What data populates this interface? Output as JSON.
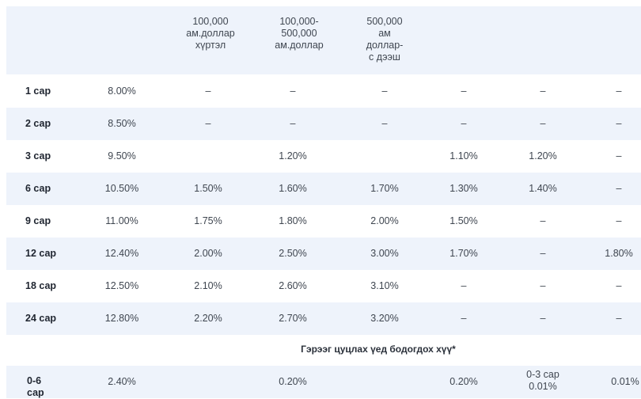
{
  "header": {
    "col_100k": "100,000\nам.доллар\nхүртэл",
    "col_100k_500k": "100,000-\n500,000\nам.доллар",
    "col_500k_plus": "500,000\nам\nдоллар-\nс дээш"
  },
  "rows": [
    {
      "term": "1 сар",
      "values": [
        "8.00%",
        "–",
        "–",
        "–",
        "–",
        "–",
        "–"
      ]
    },
    {
      "term": "2 сар",
      "values": [
        "8.50%",
        "–",
        "–",
        "–",
        "–",
        "–",
        "–"
      ]
    },
    {
      "term": "3 сар",
      "values": [
        "9.50%",
        "",
        "1.20%",
        "",
        "1.10%",
        "1.20%",
        "–"
      ]
    },
    {
      "term": "6 сар",
      "values": [
        "10.50%",
        "1.50%",
        "1.60%",
        "1.70%",
        "1.30%",
        "1.40%",
        "–"
      ]
    },
    {
      "term": "9 сар",
      "values": [
        "11.00%",
        "1.75%",
        "1.80%",
        "2.00%",
        "1.50%",
        "–",
        "–"
      ]
    },
    {
      "term": "12 сар",
      "values": [
        "12.40%",
        "2.00%",
        "2.50%",
        "3.00%",
        "1.70%",
        "–",
        "1.80%"
      ]
    },
    {
      "term": "18 сар",
      "values": [
        "12.50%",
        "2.10%",
        "2.60%",
        "3.10%",
        "–",
        "–",
        "–"
      ]
    },
    {
      "term": "24 сар",
      "values": [
        "12.80%",
        "2.20%",
        "2.70%",
        "3.20%",
        "–",
        "–",
        "–"
      ]
    }
  ],
  "section_title": "Гэрээг цуцлах үед бодогдох хүү*",
  "early": {
    "term": "0-6\nсар",
    "values": [
      "2.40%",
      "",
      "0.20%",
      "",
      "0.20%",
      "0-3 сар\n0.01%",
      "0.01%"
    ]
  }
}
